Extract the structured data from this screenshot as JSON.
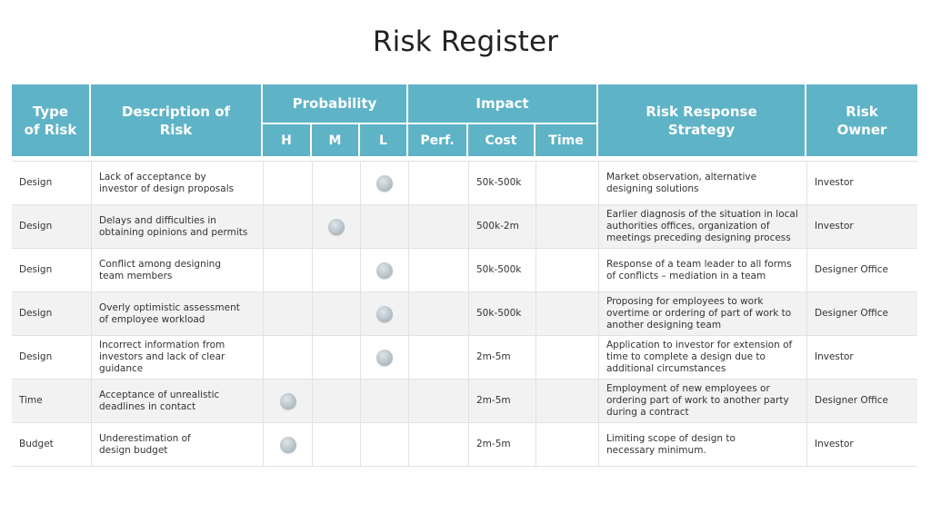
{
  "title": "Risk Register",
  "colors": {
    "header_bg": "#5fb3c7",
    "header_text": "#ffffff",
    "row_alt": "#f2f2f2"
  },
  "headers": {
    "type": "Type\nof Risk",
    "description": "Description of\nRisk",
    "probability": "Probability",
    "impact": "Impact",
    "strategy": "Risk Response\nStrategy",
    "owner": "Risk\nOwner",
    "h": "H",
    "m": "M",
    "l": "L",
    "perf": "Perf.",
    "cost": "Cost",
    "time": "Time"
  },
  "rows": [
    {
      "type": "Design",
      "description": "Lack of acceptance by\ninvestor of design proposals",
      "probability": "L",
      "cost": "50k-500k",
      "strategy": "Market observation, alternative\ndesigning solutions",
      "owner": "Investor"
    },
    {
      "type": "Design",
      "description": "Delays and difficulties in\nobtaining opinions and permits",
      "probability": "M",
      "cost": "500k-2m",
      "strategy": "Earlier diagnosis of the situation in local\nauthorities offices, organization of\nmeetings preceding designing process",
      "owner": "Investor"
    },
    {
      "type": "Design",
      "description": "Conflict among designing\nteam members",
      "probability": "L",
      "cost": "50k-500k",
      "strategy": "Response of a team leader to all forms\n of conflicts – mediation in a team",
      "owner": "Designer Office"
    },
    {
      "type": "Design",
      "description": "Overly optimistic assessment\nof employee workload",
      "probability": "L",
      "cost": "50k-500k",
      "strategy": "Proposing for employees to work\novertime or ordering of part of work to\nanother designing team",
      "owner": "Designer Office"
    },
    {
      "type": "Design",
      "description": "Incorrect information from\ninvestors and lack of clear\nguidance",
      "probability": "L",
      "cost": "2m-5m",
      "strategy": "Application to investor for extension of\ntime to complete a design due to\nadditional circumstances",
      "owner": "Investor"
    },
    {
      "type": "Time",
      "description": "Acceptance of unrealistic\ndeadlines in contact",
      "probability": "H",
      "cost": "2m-5m",
      "strategy": "Employment of new employees or\nordering part of work to another party\nduring a contract",
      "owner": "Designer Office"
    },
    {
      "type": "Budget",
      "description": "Underestimation of\ndesign budget",
      "probability": "H",
      "cost": "2m-5m",
      "strategy": "Limiting scope of design to\nnecessary minimum.",
      "owner": "Investor"
    }
  ]
}
